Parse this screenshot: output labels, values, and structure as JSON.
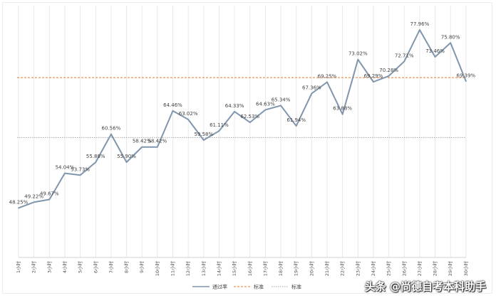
{
  "chart_data": {
    "type": "line",
    "categories": [
      "1小时",
      "2小时",
      "3小时",
      "4小时",
      "5小时",
      "6小时",
      "7小时",
      "8小时",
      "9小时",
      "10小时",
      "11小时",
      "12小时",
      "13小时",
      "14小时",
      "15小时",
      "16小时",
      "17小时",
      "18小时",
      "19小时",
      "20小时",
      "21小时",
      "22小时",
      "23小时",
      "24小时",
      "25小时",
      "26小时",
      "27小时",
      "28小时",
      "29小时",
      "30小时"
    ],
    "series": [
      {
        "name": "通过率",
        "values": [
          48.25,
          49.22,
          49.67,
          54.04,
          53.73,
          55.88,
          60.56,
          55.9,
          58.42,
          58.42,
          64.46,
          63.02,
          59.58,
          61.11,
          64.33,
          62.53,
          64.63,
          65.34,
          61.94,
          67.36,
          69.25,
          63.88,
          73.02,
          69.29,
          70.28,
          72.71,
          77.96,
          73.46,
          75.8,
          69.39
        ],
        "labels": [
          "48.25%",
          "49.22%",
          "49.67%",
          "54.04%",
          "53.73%",
          "55.88%",
          "60.56%",
          "55.90%",
          "58.42%",
          "58.42%",
          "64.46%",
          "63.02%",
          "59.58%",
          "61.11%",
          "64.33%",
          "62.53%",
          "64.63%",
          "65.34%",
          "61.94%",
          "67.36%",
          "69.25%",
          "63.88%",
          "73.02%",
          "69.29%",
          "70.28%",
          "72.71%",
          "77.96%",
          "73.46%",
          "75.80%",
          "69.39%"
        ],
        "color": "#7f96ad"
      },
      {
        "name": "标准",
        "value": 70.0,
        "color": "#e7772c",
        "style": "dashed"
      },
      {
        "name": "标准",
        "value": 60.0,
        "color": "#a8a8a8",
        "style": "dotted"
      }
    ],
    "ylim": [
      40,
      82
    ],
    "grid": "vertical",
    "legend": "bottom"
  },
  "watermark": "头条 @尚德自考本科助手"
}
